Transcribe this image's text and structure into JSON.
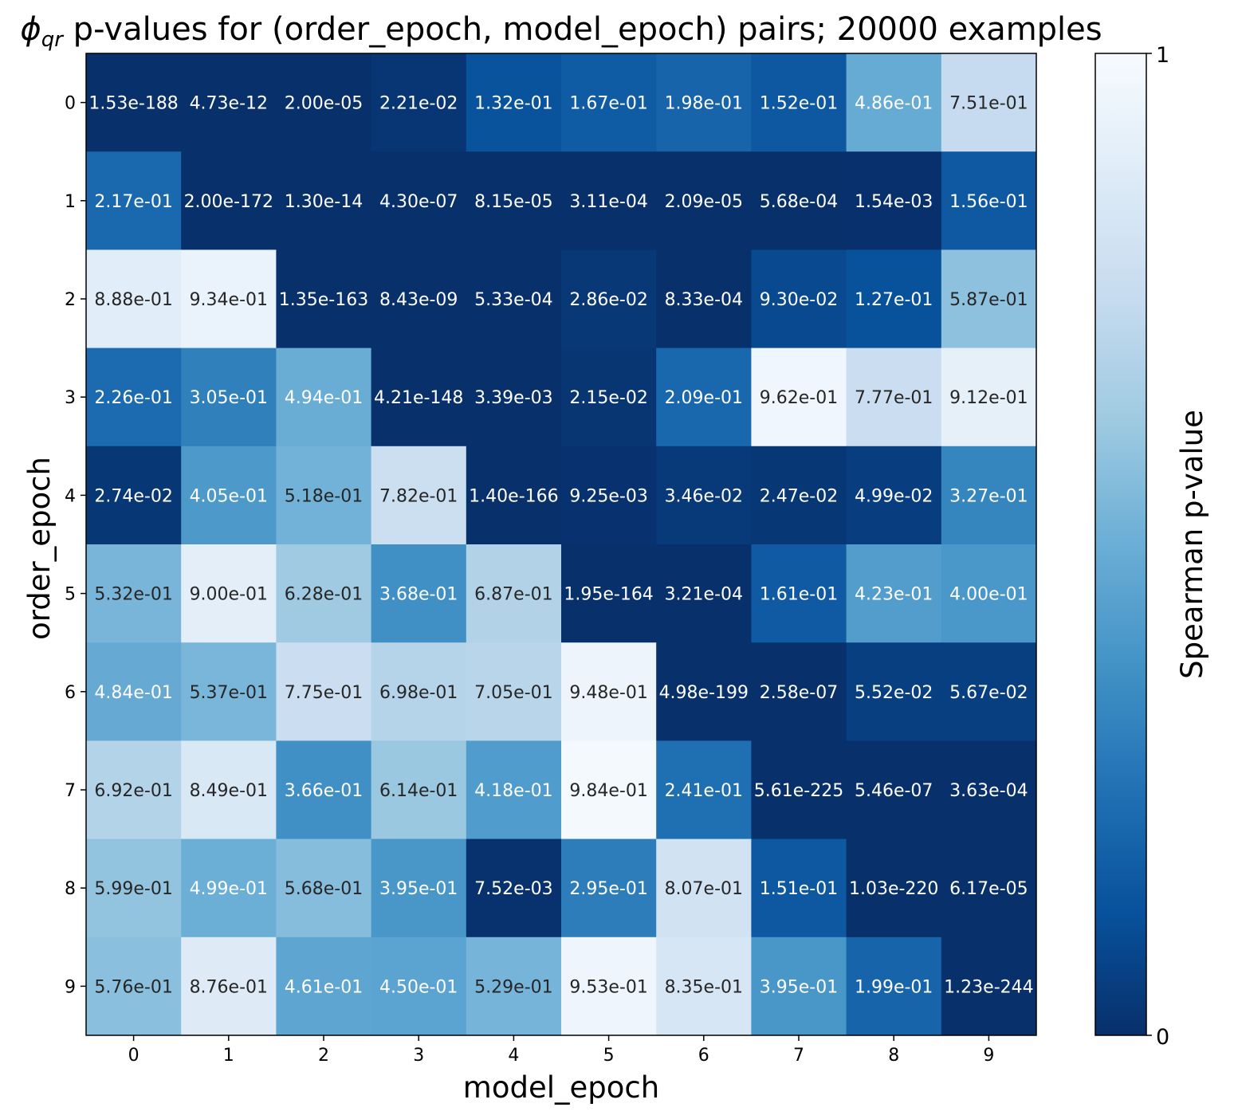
{
  "chart_data": {
    "type": "heatmap",
    "title_symbol": "ϕ",
    "title_subscript": "qr",
    "title_rest": " p-values for (order_epoch, model_epoch) pairs; 20000 examples",
    "xlabel": "model_epoch",
    "ylabel": "order_epoch",
    "x_ticks": [
      "0",
      "1",
      "2",
      "3",
      "4",
      "5",
      "6",
      "7",
      "8",
      "9"
    ],
    "y_ticks": [
      "0",
      "1",
      "2",
      "3",
      "4",
      "5",
      "6",
      "7",
      "8",
      "9"
    ],
    "colorbar": {
      "label": "Spearman p-value",
      "min": 0,
      "max": 1,
      "min_label": "0",
      "max_label": "1",
      "colormap": "Blues_r",
      "colors": [
        "#08306b",
        "#08519c",
        "#2171b5",
        "#4292c6",
        "#6baed6",
        "#9ecae1",
        "#c6dbef",
        "#deebf7",
        "#f7fbff"
      ]
    },
    "cell_labels": [
      [
        "1.53e-188",
        "4.73e-12",
        "2.00e-05",
        "2.21e-02",
        "1.32e-01",
        "1.67e-01",
        "1.98e-01",
        "1.52e-01",
        "4.86e-01",
        "7.51e-01"
      ],
      [
        "2.17e-01",
        "2.00e-172",
        "1.30e-14",
        "4.30e-07",
        "8.15e-05",
        "3.11e-04",
        "2.09e-05",
        "5.68e-04",
        "1.54e-03",
        "1.56e-01"
      ],
      [
        "8.88e-01",
        "9.34e-01",
        "1.35e-163",
        "8.43e-09",
        "5.33e-04",
        "2.86e-02",
        "8.33e-04",
        "9.30e-02",
        "1.27e-01",
        "5.87e-01"
      ],
      [
        "2.26e-01",
        "3.05e-01",
        "4.94e-01",
        "4.21e-148",
        "3.39e-03",
        "2.15e-02",
        "2.09e-01",
        "9.62e-01",
        "7.77e-01",
        "9.12e-01"
      ],
      [
        "2.74e-02",
        "4.05e-01",
        "5.18e-01",
        "7.82e-01",
        "1.40e-166",
        "9.25e-03",
        "3.46e-02",
        "2.47e-02",
        "4.99e-02",
        "3.27e-01"
      ],
      [
        "5.32e-01",
        "9.00e-01",
        "6.28e-01",
        "3.68e-01",
        "6.87e-01",
        "1.95e-164",
        "3.21e-04",
        "1.61e-01",
        "4.23e-01",
        "4.00e-01"
      ],
      [
        "4.84e-01",
        "5.37e-01",
        "7.75e-01",
        "6.98e-01",
        "7.05e-01",
        "9.48e-01",
        "4.98e-199",
        "2.58e-07",
        "5.52e-02",
        "5.67e-02"
      ],
      [
        "6.92e-01",
        "8.49e-01",
        "3.66e-01",
        "6.14e-01",
        "4.18e-01",
        "9.84e-01",
        "2.41e-01",
        "5.61e-225",
        "5.46e-07",
        "3.63e-04"
      ],
      [
        "5.99e-01",
        "4.99e-01",
        "5.68e-01",
        "3.95e-01",
        "7.52e-03",
        "2.95e-01",
        "8.07e-01",
        "1.51e-01",
        "1.03e-220",
        "6.17e-05"
      ],
      [
        "5.76e-01",
        "8.76e-01",
        "4.61e-01",
        "4.50e-01",
        "5.29e-01",
        "9.53e-01",
        "8.35e-01",
        "3.95e-01",
        "1.99e-01",
        "1.23e-244"
      ]
    ]
  }
}
